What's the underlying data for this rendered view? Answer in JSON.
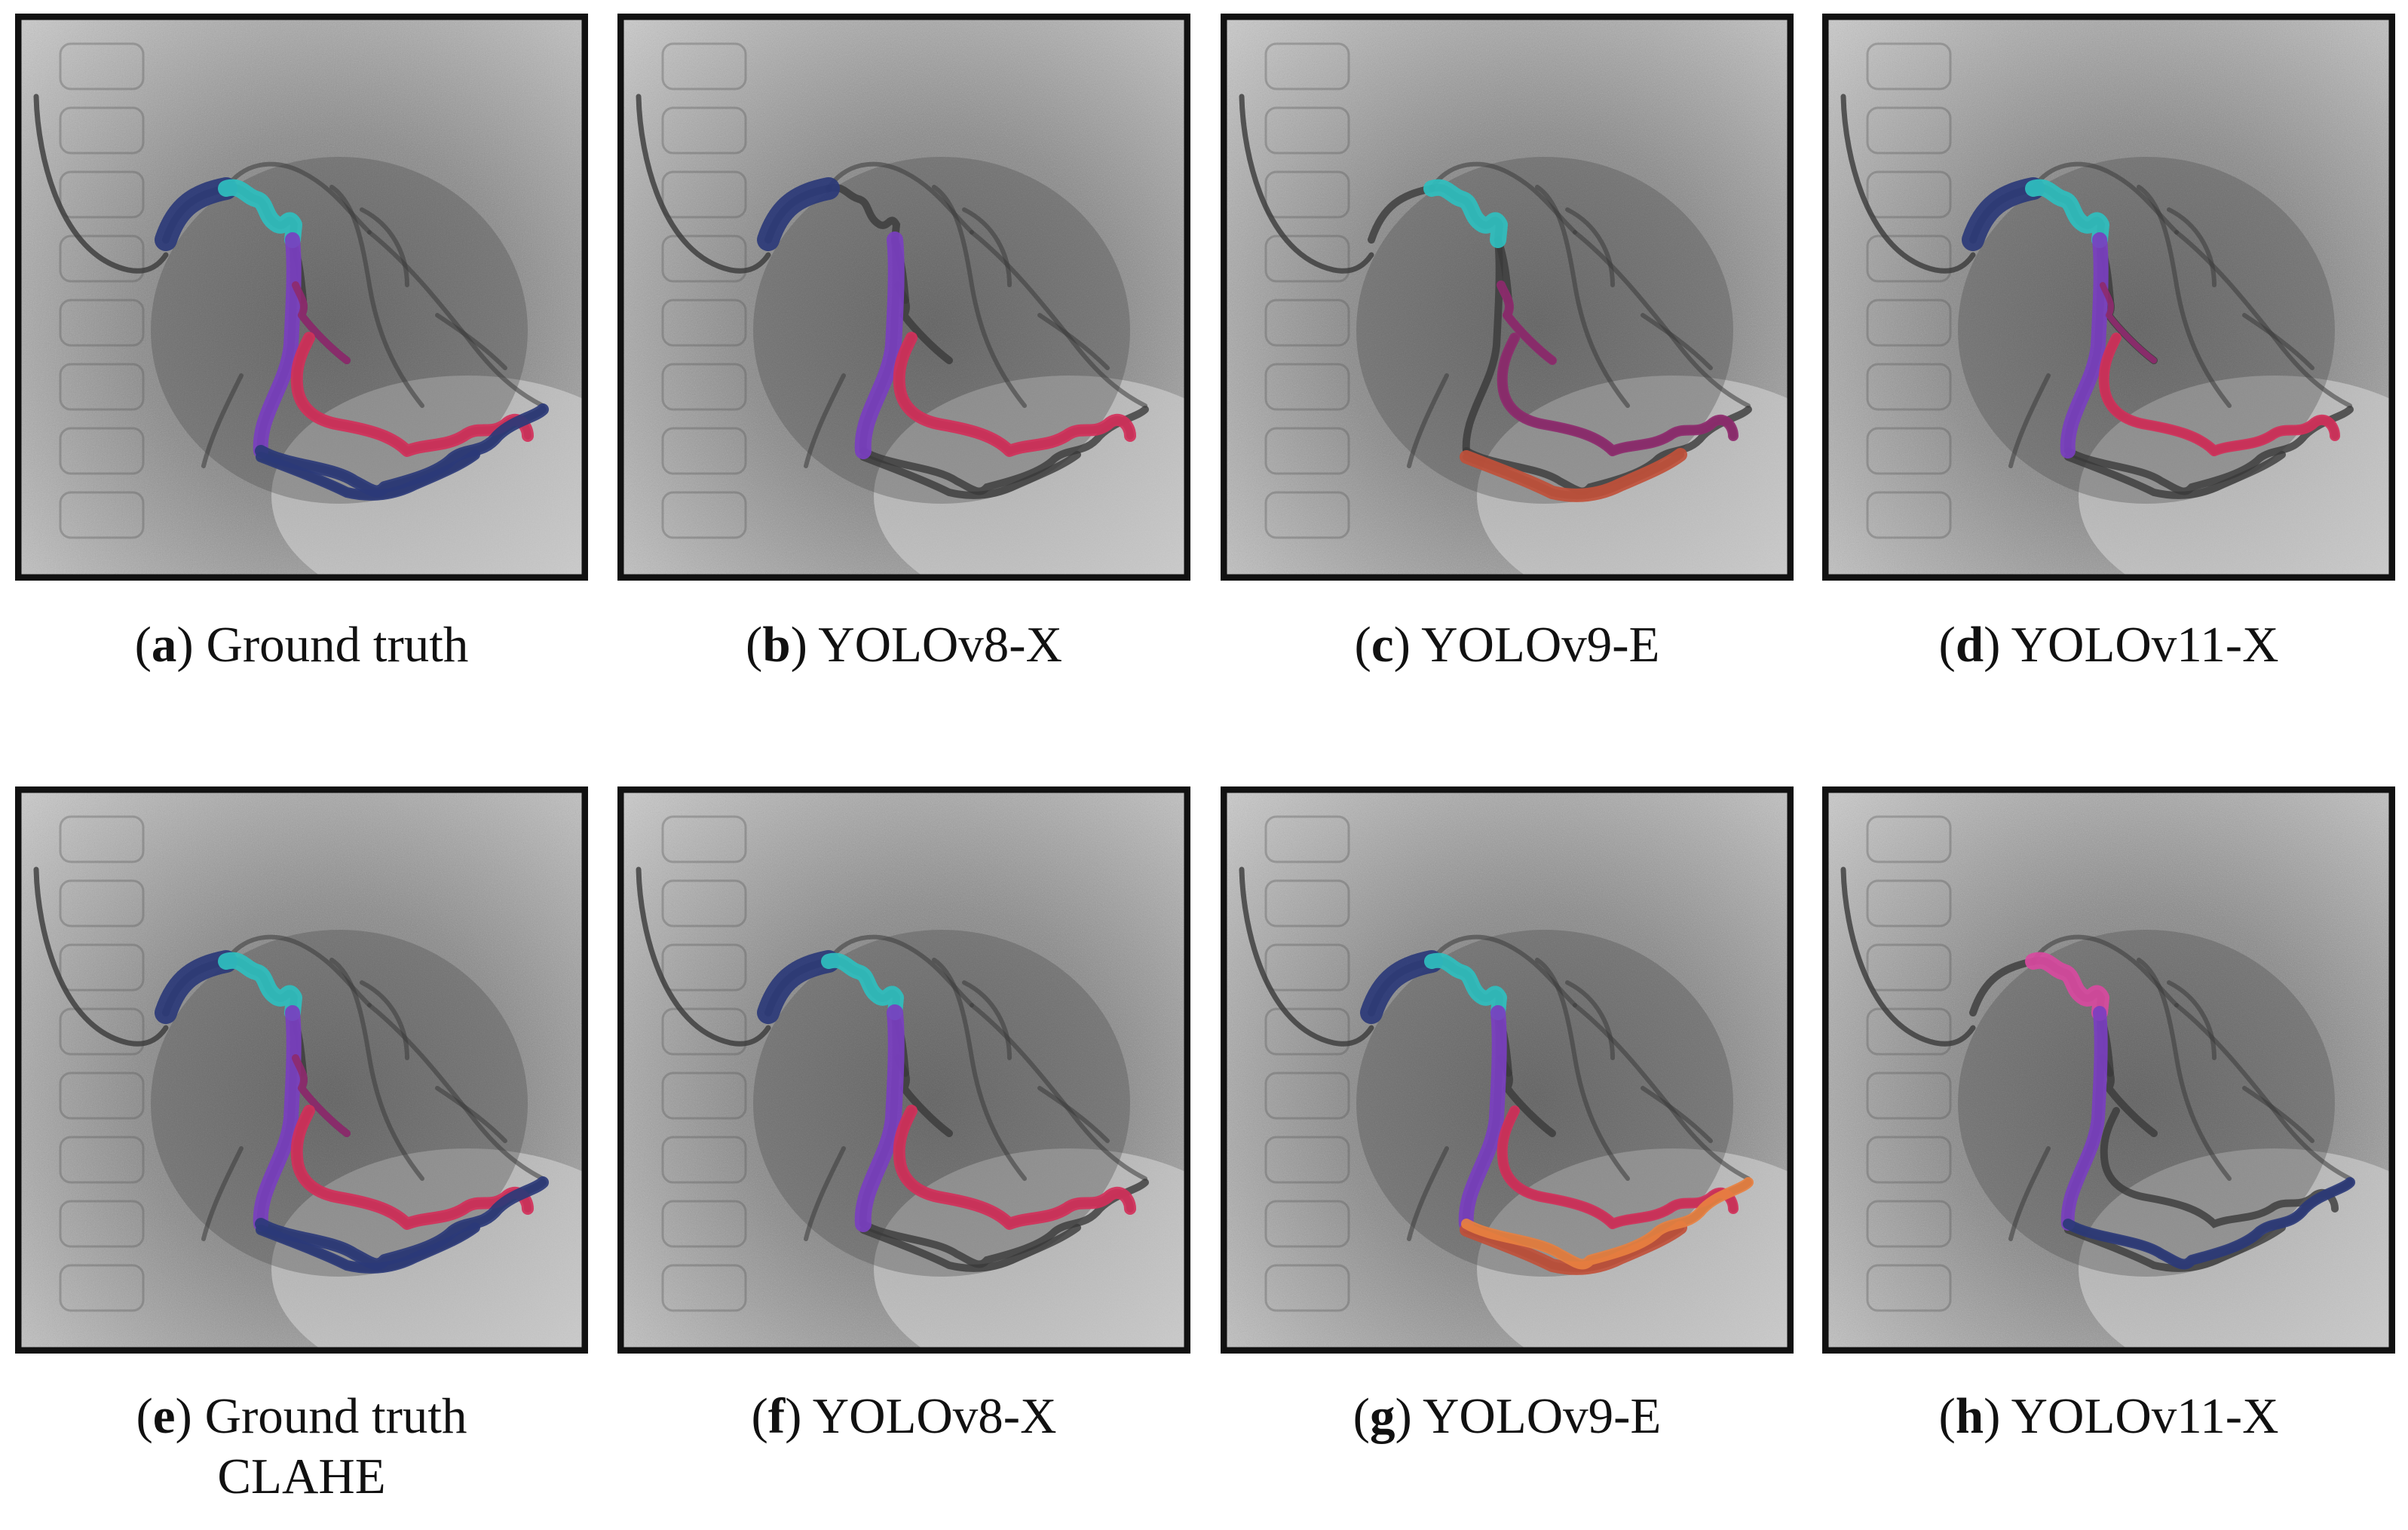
{
  "figure": {
    "panels": [
      {
        "letter": "a",
        "label": "Ground truth",
        "variant": "gt"
      },
      {
        "letter": "b",
        "label": "YOLOv8-X",
        "variant": "v8"
      },
      {
        "letter": "c",
        "label": "YOLOv9-E",
        "variant": "v9"
      },
      {
        "letter": "d",
        "label": "YOLOv11-X",
        "variant": "v11"
      },
      {
        "letter": "e",
        "label": "Ground truth",
        "label2": "CLAHE",
        "variant": "gt"
      },
      {
        "letter": "f",
        "label": "YOLOv8-X",
        "variant": "v8c"
      },
      {
        "letter": "g",
        "label": "YOLOv9-E",
        "variant": "v9c"
      },
      {
        "letter": "h",
        "label": "YOLOv11-X",
        "variant": "v11c"
      }
    ],
    "segment_colors": {
      "navy": "#2b3a78",
      "teal": "#2fbfbf",
      "purple": "#7a3fc0",
      "crimson": "#d2305a",
      "plum": "#8e2a6e",
      "brick": "#c0503a",
      "orange": "#e88040",
      "pink": "#d84aa0",
      "vessel": "#3a3a3a"
    }
  }
}
